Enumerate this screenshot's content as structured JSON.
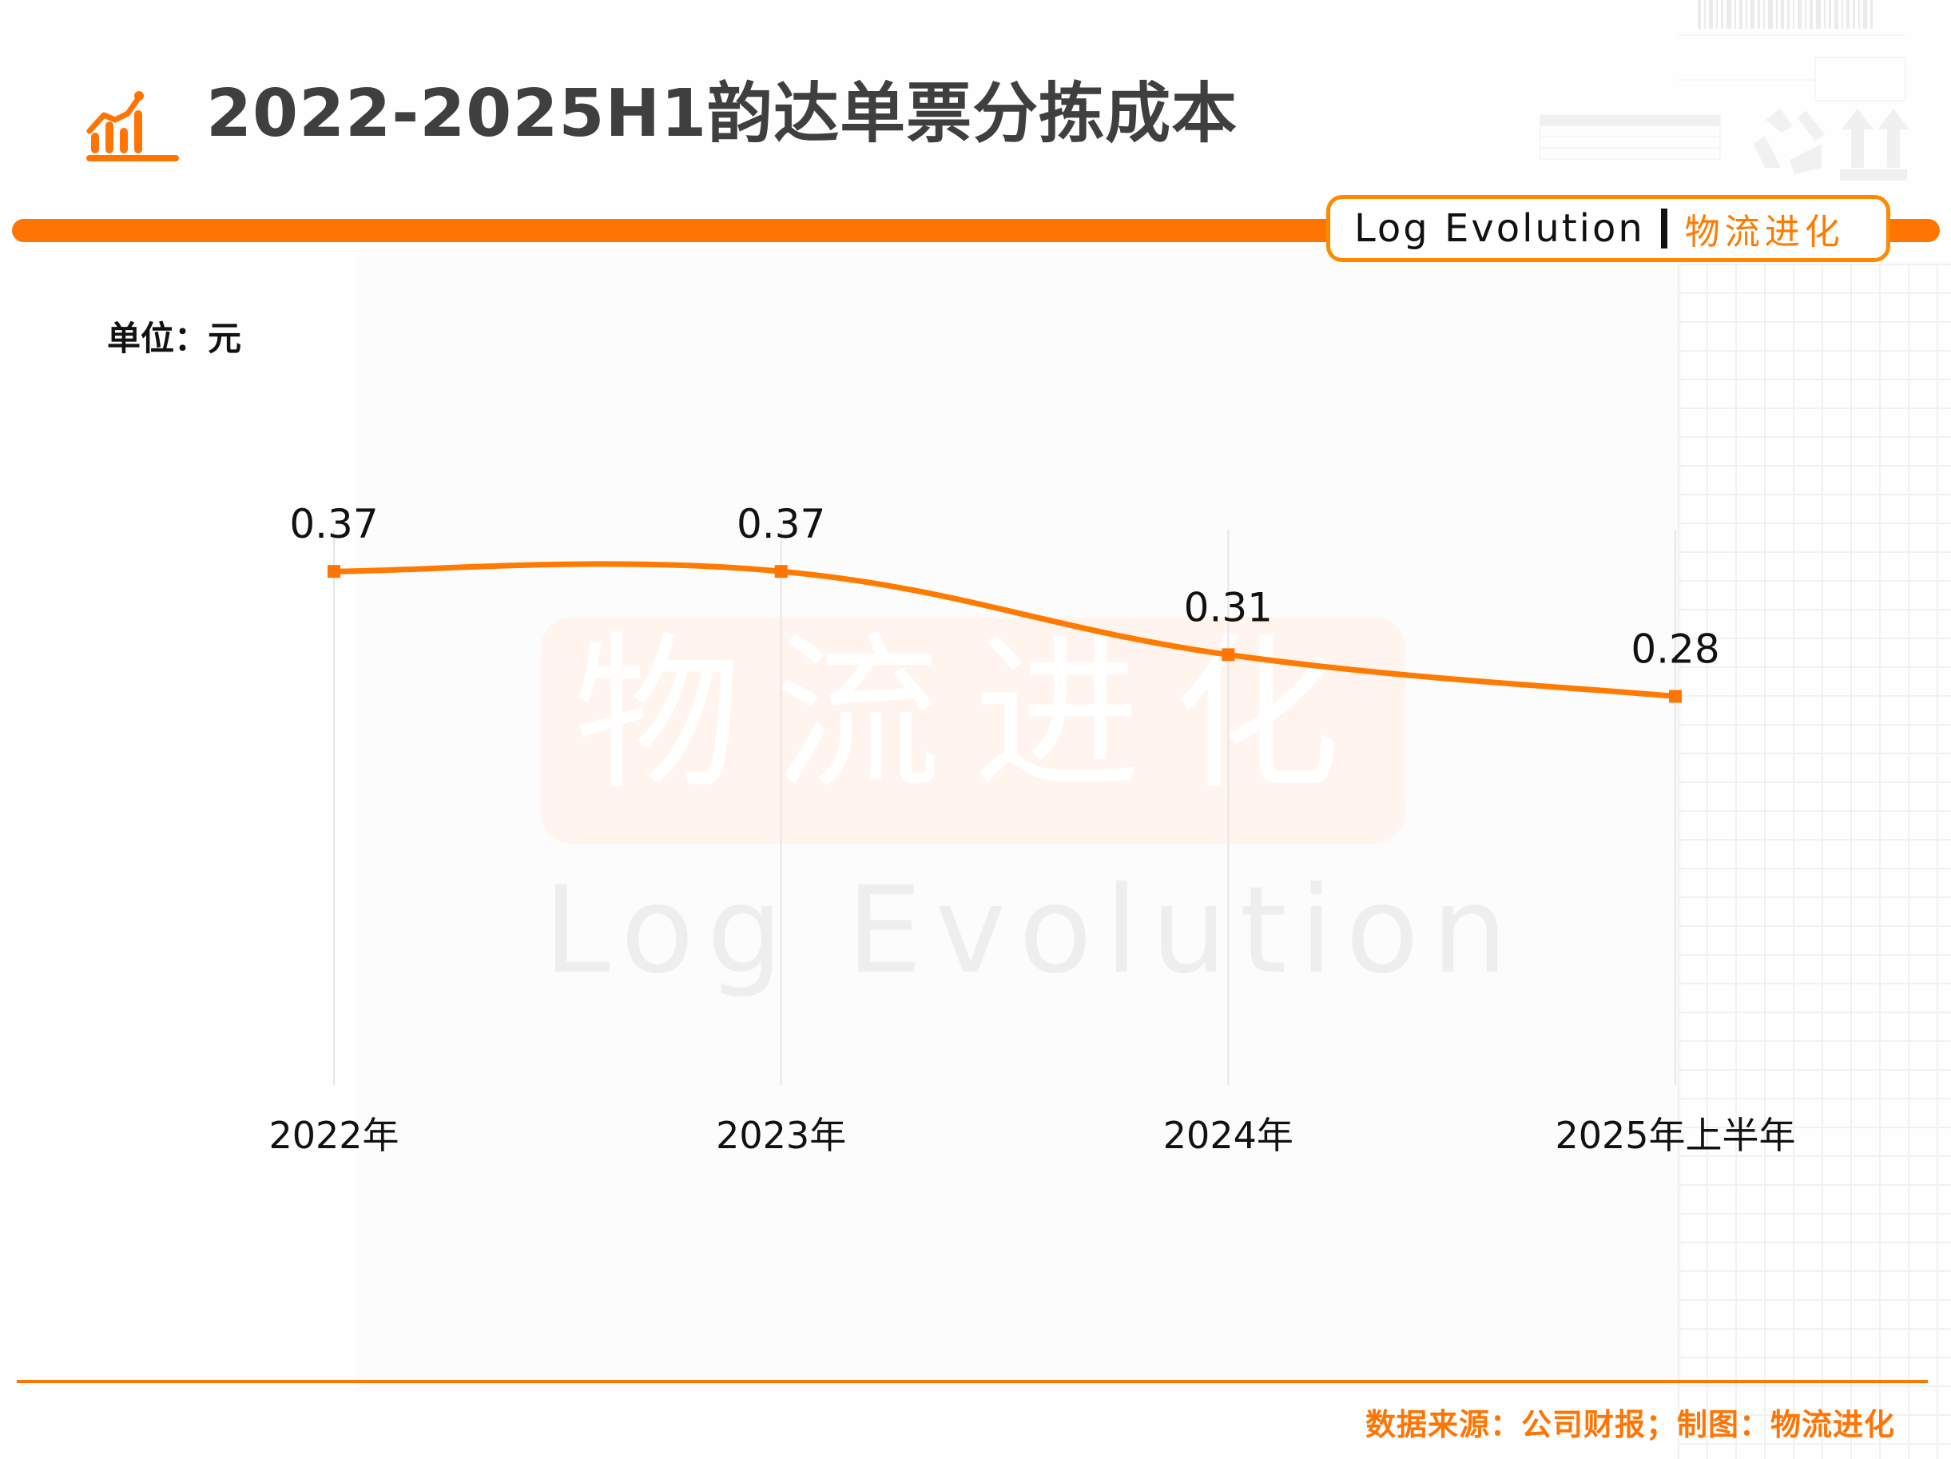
{
  "header": {
    "title": "2022-2025H1韵达单票分拣成本",
    "icon": "bar-chart-trend-icon"
  },
  "badge": {
    "brand_en": "Log Evolution",
    "brand_cn": "物流进化"
  },
  "watermark": {
    "cn": "物流进化",
    "en": "Log Evolution"
  },
  "unit_label": "单位：元",
  "footer": {
    "source": "数据来源：公司财报；制图：物流进化"
  },
  "colors": {
    "accent": "#ff7504",
    "line": "#ff7a00",
    "title": "#3f3f3f",
    "gridline": "#e6e6e6"
  },
  "chart_data": {
    "type": "line",
    "title": "2022-2025H1韵达单票分拣成本",
    "xlabel": "",
    "ylabel": "单位：元",
    "categories": [
      "2022年",
      "2023年",
      "2024年",
      "2025年上半年"
    ],
    "series": [
      {
        "name": "单票分拣成本",
        "values": [
          0.37,
          0.37,
          0.31,
          0.28
        ]
      }
    ],
    "data_labels": [
      "0.37",
      "0.37",
      "0.31",
      "0.28"
    ],
    "ylim": [
      0,
      0.4
    ],
    "grid": "vertical lines at categories",
    "legend": "none",
    "smooth": true,
    "marker": "square"
  }
}
